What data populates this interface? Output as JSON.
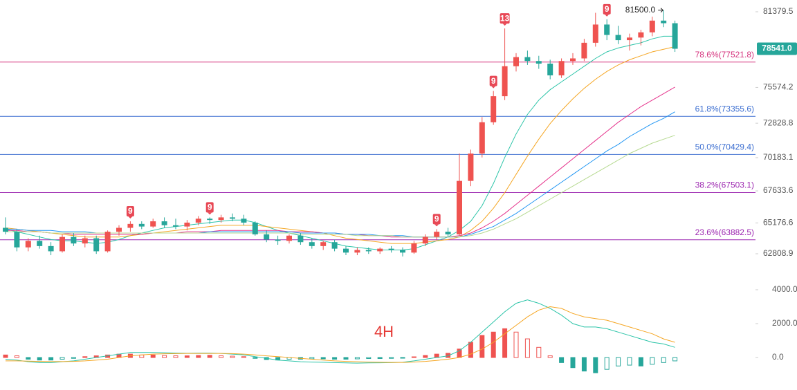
{
  "chart_data": [
    {
      "type": "candlestick",
      "open": [
        64800,
        64500,
        63300,
        63800,
        63400,
        63000,
        64100,
        63600,
        64000,
        63000,
        64500,
        64800,
        65100,
        64900,
        65300,
        65000,
        64900,
        65200,
        65500,
        65400,
        65600,
        65500,
        65200,
        64300,
        63900,
        63800,
        64200,
        63700,
        63400,
        63700,
        63200,
        62900,
        63100,
        63000,
        63200,
        63100,
        62900,
        63600,
        64100,
        64500,
        64300,
        68400,
        70500,
        72900,
        74900,
        77200,
        77900,
        77600,
        77400,
        76500,
        77600,
        77800,
        79000,
        80400,
        79600,
        79200,
        79400,
        79800,
        80700,
        80500
      ],
      "high": [
        65600,
        64700,
        64000,
        64200,
        63700,
        64300,
        64400,
        64200,
        64200,
        64600,
        65000,
        65300,
        65300,
        65500,
        65600,
        65500,
        65400,
        65700,
        65600,
        65800,
        65900,
        65800,
        65300,
        64600,
        64200,
        64300,
        64400,
        64000,
        63800,
        63900,
        63400,
        63300,
        63300,
        63300,
        63400,
        63300,
        63800,
        64300,
        64700,
        64800,
        70500,
        70800,
        73300,
        75300,
        80100,
        78200,
        78400,
        78000,
        77700,
        77800,
        78200,
        79300,
        81300,
        80800,
        80300,
        79700,
        80000,
        81000,
        81500,
        80700
      ],
      "low": [
        64300,
        63000,
        63000,
        63200,
        62700,
        62900,
        63400,
        63300,
        62800,
        62900,
        64200,
        64500,
        64700,
        64800,
        64800,
        64700,
        64600,
        65000,
        65100,
        65200,
        65300,
        65000,
        64200,
        63700,
        63500,
        63600,
        63500,
        63200,
        63100,
        63000,
        62700,
        62700,
        62800,
        62800,
        62900,
        62600,
        62800,
        63400,
        63900,
        64100,
        64200,
        68000,
        70200,
        72700,
        74600,
        76800,
        77300,
        77000,
        76200,
        76300,
        77300,
        77600,
        78700,
        79200,
        78900,
        78400,
        78800,
        79500,
        80200,
        78300
      ],
      "close": [
        64500,
        63300,
        63800,
        63400,
        63000,
        64100,
        63600,
        64000,
        63000,
        64500,
        64800,
        65100,
        64900,
        65300,
        65000,
        64900,
        65200,
        65500,
        65400,
        65600,
        65500,
        65200,
        64300,
        63900,
        63800,
        64200,
        63700,
        63400,
        63700,
        63200,
        62900,
        63100,
        63000,
        63200,
        63100,
        62900,
        63600,
        64100,
        64500,
        64300,
        68400,
        70500,
        72900,
        74900,
        77200,
        77900,
        77600,
        77400,
        76500,
        77600,
        77800,
        79000,
        80400,
        79600,
        79200,
        79400,
        79800,
        80700,
        80500,
        78541
      ],
      "up_color": "#ef5350",
      "down_color": "#26a69a",
      "series": [
        {
          "color": "#2bc4a8",
          "values": [
            64700,
            64500,
            64300,
            64100,
            63900,
            63800,
            63800,
            63700,
            63600,
            63700,
            63900,
            64200,
            64400,
            64600,
            64800,
            64900,
            65000,
            65100,
            65200,
            65300,
            65400,
            65400,
            65200,
            64900,
            64600,
            64400,
            64200,
            64000,
            63800,
            63600,
            63400,
            63300,
            63200,
            63100,
            63100,
            63100,
            63200,
            63500,
            63800,
            64100,
            64600,
            65300,
            66500,
            68200,
            70200,
            72000,
            73500,
            74600,
            75400,
            76000,
            76600,
            77200,
            77800,
            78300,
            78600,
            78800,
            79000,
            79300,
            79500,
            79500
          ]
        },
        {
          "color": "#f5a623",
          "values": [
            64800,
            64700,
            64600,
            64500,
            64400,
            64300,
            64200,
            64100,
            64100,
            64100,
            64100,
            64200,
            64300,
            64400,
            64500,
            64600,
            64700,
            64800,
            64900,
            65000,
            65000,
            65000,
            65000,
            64900,
            64800,
            64700,
            64600,
            64500,
            64400,
            64200,
            64000,
            63900,
            63800,
            63700,
            63600,
            63600,
            63600,
            63700,
            63800,
            63900,
            64100,
            64600,
            65300,
            66300,
            67500,
            68900,
            70300,
            71600,
            72800,
            73800,
            74700,
            75500,
            76200,
            76800,
            77300,
            77700,
            78000,
            78300,
            78500,
            78700
          ]
        },
        {
          "color": "#e5338c",
          "values": [
            64600,
            64600,
            64500,
            64500,
            64400,
            64400,
            64300,
            64300,
            64300,
            64300,
            64300,
            64300,
            64300,
            64400,
            64400,
            64400,
            64500,
            64500,
            64500,
            64600,
            64600,
            64600,
            64600,
            64600,
            64600,
            64500,
            64500,
            64500,
            64400,
            64400,
            64300,
            64300,
            64200,
            64200,
            64100,
            64100,
            64100,
            64100,
            64100,
            64100,
            64200,
            64400,
            64800,
            65300,
            65900,
            66600,
            67300,
            68000,
            68700,
            69400,
            70100,
            70800,
            71500,
            72200,
            72900,
            73500,
            74100,
            74600,
            75100,
            75600
          ]
        },
        {
          "color": "#2196f3",
          "values": [
            64700,
            64700,
            64600,
            64600,
            64600,
            64500,
            64500,
            64500,
            64400,
            64400,
            64400,
            64400,
            64400,
            64400,
            64400,
            64400,
            64400,
            64400,
            64500,
            64500,
            64500,
            64500,
            64500,
            64500,
            64500,
            64500,
            64400,
            64400,
            64400,
            64400,
            64300,
            64300,
            64300,
            64200,
            64200,
            64200,
            64100,
            64100,
            64100,
            64100,
            64100,
            64300,
            64600,
            64900,
            65400,
            65900,
            66500,
            67100,
            67700,
            68300,
            68900,
            69500,
            70100,
            70700,
            71200,
            71800,
            72300,
            72800,
            73200,
            73700
          ]
        },
        {
          "color": "#b5d98f",
          "values": [
            64500,
            64500,
            64500,
            64500,
            64400,
            64400,
            64400,
            64400,
            64400,
            64400,
            64400,
            64400,
            64400,
            64400,
            64400,
            64400,
            64400,
            64400,
            64400,
            64400,
            64400,
            64400,
            64400,
            64400,
            64400,
            64400,
            64300,
            64300,
            64300,
            64300,
            64300,
            64200,
            64200,
            64200,
            64200,
            64100,
            64100,
            64100,
            64100,
            64100,
            64100,
            64200,
            64400,
            64700,
            65100,
            65500,
            66000,
            66500,
            67000,
            67500,
            68000,
            68500,
            69000,
            69500,
            70000,
            70500,
            70900,
            71300,
            71600,
            71900
          ]
        }
      ],
      "td": [
        null,
        null,
        null,
        null,
        null,
        null,
        null,
        null,
        null,
        null,
        null,
        9,
        null,
        null,
        null,
        null,
        null,
        null,
        9,
        null,
        null,
        null,
        null,
        null,
        null,
        null,
        null,
        null,
        null,
        null,
        null,
        null,
        null,
        null,
        null,
        null,
        null,
        null,
        9,
        null,
        null,
        null,
        null,
        9,
        13,
        null,
        null,
        null,
        null,
        null,
        null,
        null,
        null,
        9,
        null,
        null,
        null,
        null,
        null,
        null
      ],
      "fib_levels": [
        {
          "value": 77521.8,
          "label": "78.6%(77521.8)",
          "color": "#d6337e"
        },
        {
          "value": 73355.6,
          "label": "61.8%(73355.6)",
          "color": "#3d6fd1"
        },
        {
          "value": 70429.4,
          "label": "50.0%(70429.4)",
          "color": "#3d6fd1"
        },
        {
          "value": 67503.1,
          "label": "38.2%(67503.1)",
          "color": "#9c27b0"
        },
        {
          "value": 63882.5,
          "label": "23.6%(63882.5)",
          "color": "#9c27b0"
        }
      ],
      "last_price": {
        "value": 78541,
        "label": "78541.0",
        "color": "#26a69a"
      },
      "high_marker": {
        "value": 81500,
        "label": "81500.0"
      },
      "ylim": [
        61323,
        82282
      ],
      "yticks": [
        81379.5,
        75574.2,
        72828.8,
        70183.1,
        67633.6,
        65176.6,
        62808.9
      ]
    },
    {
      "type": "macd",
      "annotation": "4H",
      "histogram": [
        150,
        100,
        -100,
        -150,
        -150,
        -100,
        -50,
        50,
        100,
        150,
        200,
        200,
        150,
        150,
        120,
        100,
        100,
        120,
        130,
        100,
        80,
        50,
        -50,
        -120,
        -150,
        -100,
        -100,
        -80,
        -80,
        -100,
        -100,
        -80,
        -60,
        -60,
        -50,
        -40,
        40,
        120,
        200,
        250,
        500,
        900,
        1300,
        1500,
        1700,
        1500,
        1100,
        600,
        100,
        -300,
        -600,
        -800,
        -900,
        -700,
        -500,
        -450,
        -500,
        -400,
        -300,
        -200
      ],
      "up_color": "#ef5350",
      "down_color": "#26a69a",
      "series": [
        {
          "color": "#2bc4a8",
          "values": [
            -100,
            -150,
            -250,
            -300,
            -300,
            -250,
            -200,
            -100,
            0,
            100,
            200,
            300,
            300,
            300,
            280,
            260,
            250,
            260,
            260,
            240,
            200,
            150,
            50,
            -50,
            -150,
            -200,
            -250,
            -270,
            -280,
            -300,
            -320,
            -330,
            -320,
            -310,
            -300,
            -280,
            -200,
            -100,
            0,
            100,
            400,
            900,
            1500,
            2100,
            2700,
            3200,
            3400,
            3200,
            2900,
            2500,
            2000,
            1800,
            1800,
            1700,
            1500,
            1300,
            1100,
            900,
            800,
            600
          ]
        },
        {
          "color": "#f5a623",
          "values": [
            -200,
            -200,
            -210,
            -230,
            -240,
            -240,
            -230,
            -200,
            -150,
            -100,
            0,
            100,
            150,
            200,
            220,
            230,
            240,
            240,
            240,
            240,
            230,
            200,
            150,
            100,
            50,
            0,
            -50,
            -100,
            -150,
            -200,
            -230,
            -250,
            -270,
            -280,
            -290,
            -290,
            -270,
            -230,
            -170,
            -100,
            0,
            200,
            500,
            900,
            1400,
            1900,
            2400,
            2800,
            3000,
            2900,
            2600,
            2400,
            2300,
            2200,
            2000,
            1800,
            1600,
            1400,
            1100,
            900
          ]
        }
      ],
      "ylim": [
        -1918,
        4776
      ],
      "yticks": [
        {
          "value": 4000,
          "label": "4000.0"
        },
        {
          "value": 2000,
          "label": "2000.0"
        },
        {
          "value": 0,
          "label": "0.0"
        }
      ]
    }
  ]
}
